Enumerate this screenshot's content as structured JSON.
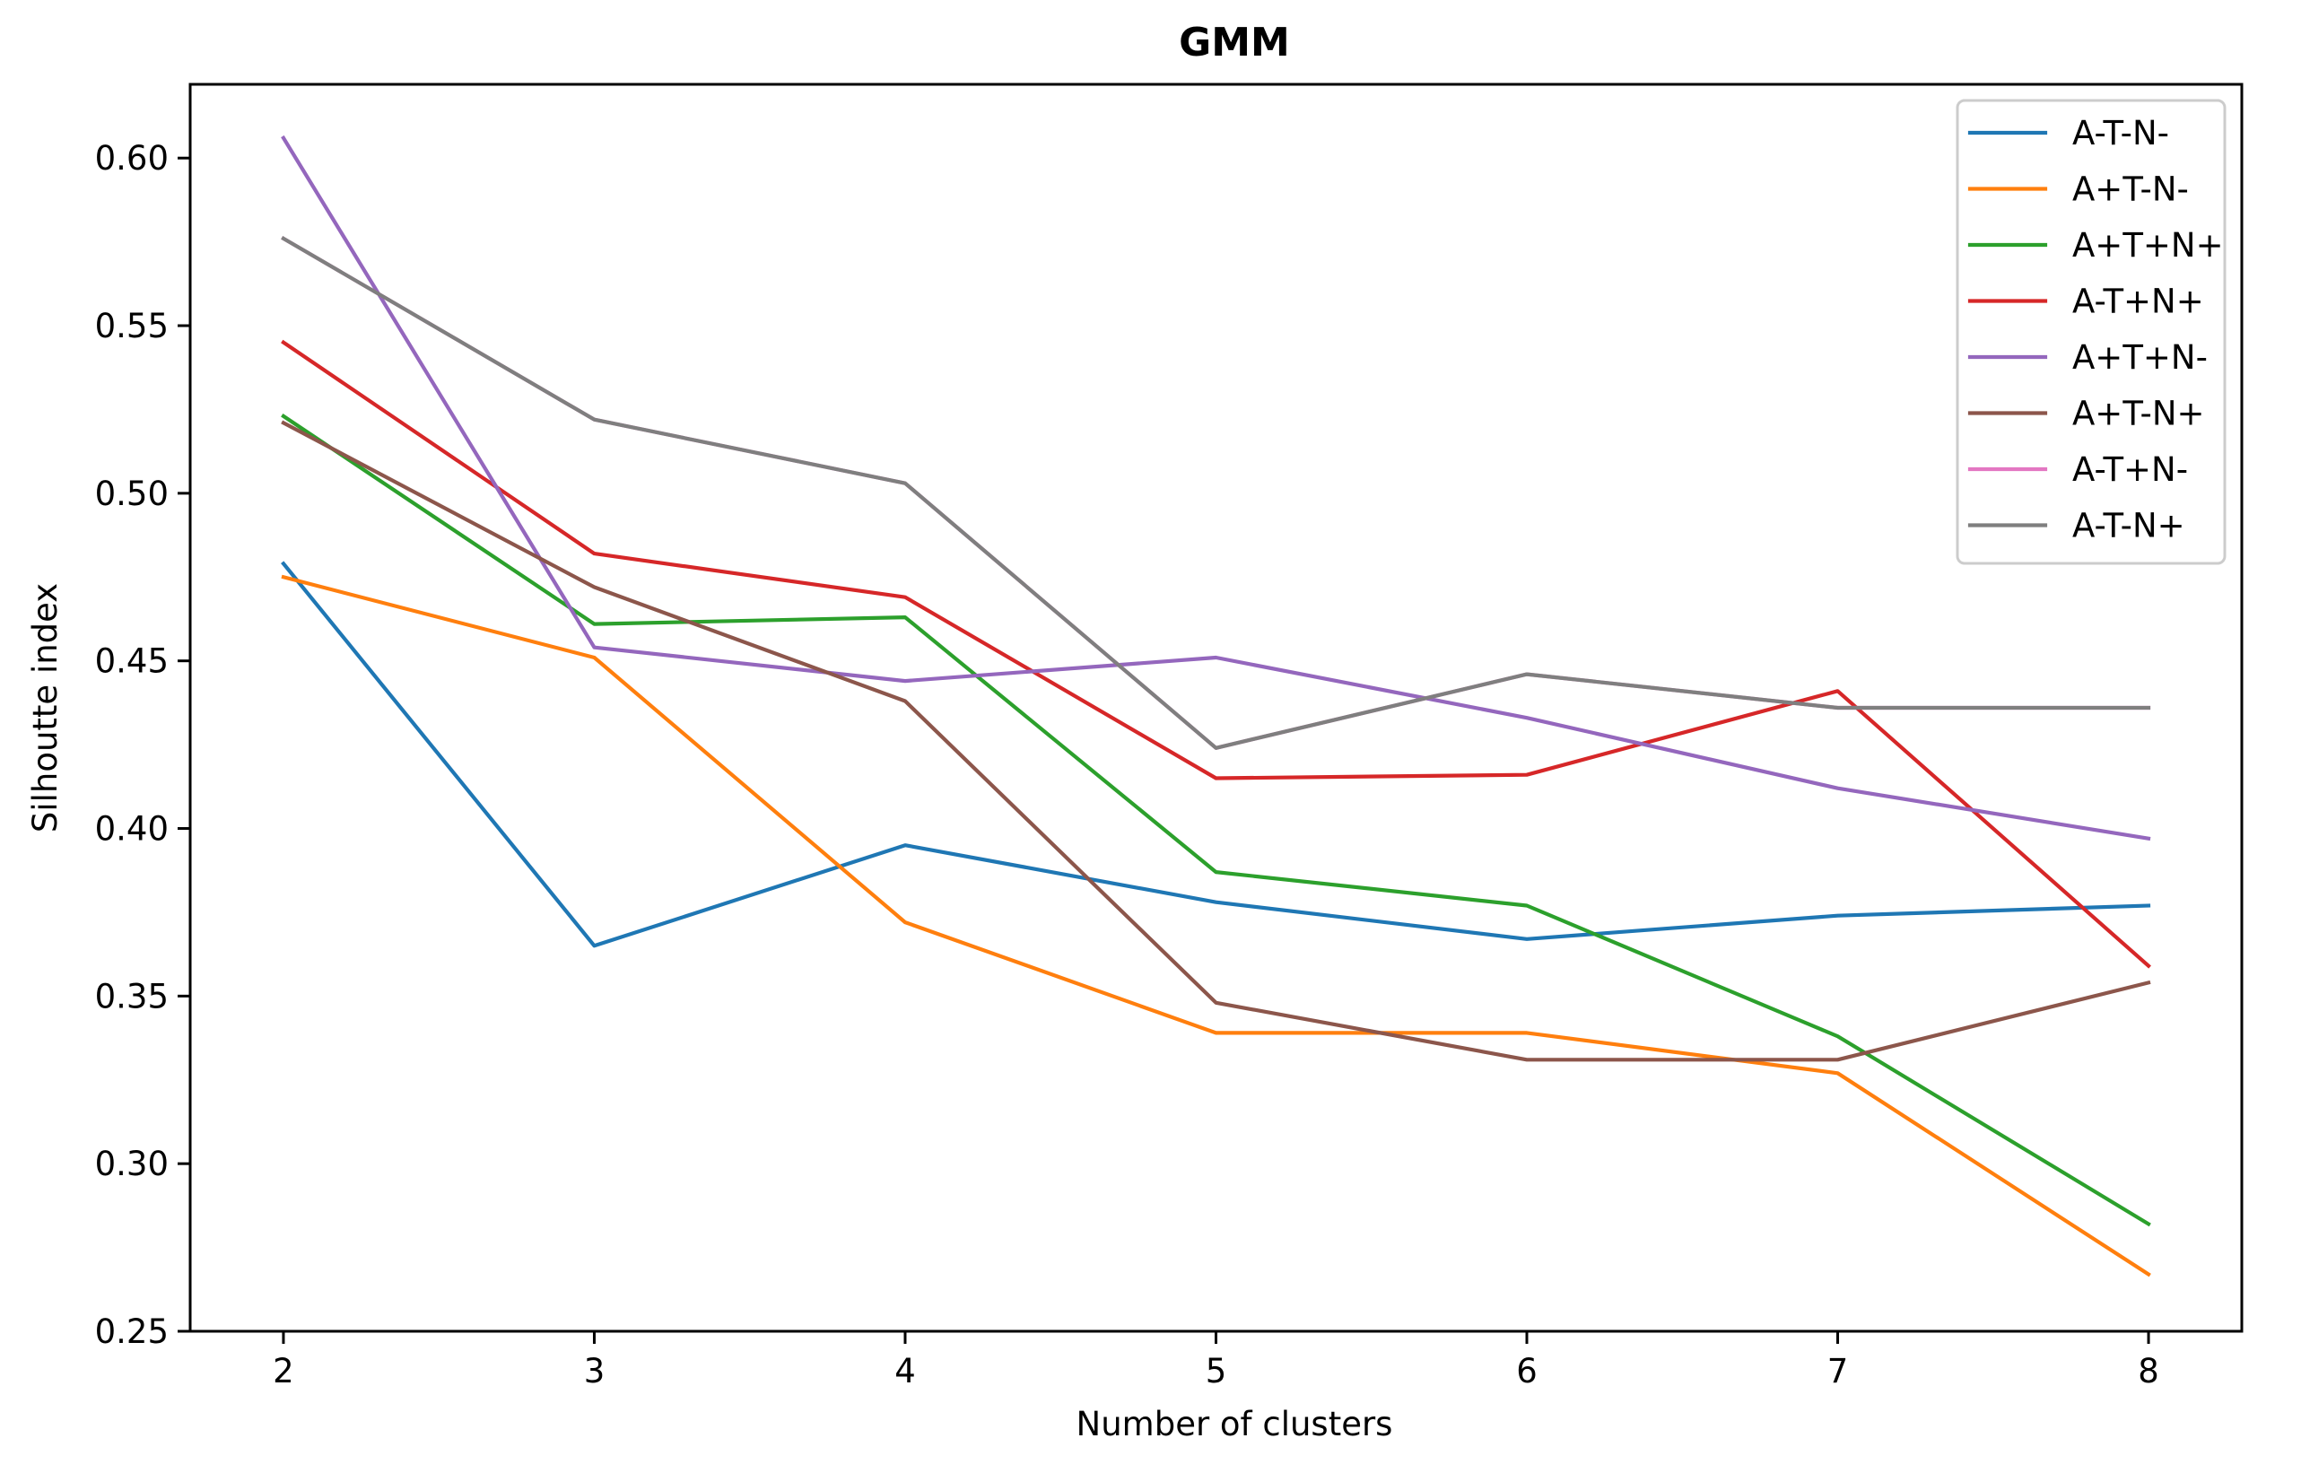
{
  "chart_data": {
    "type": "line",
    "title": "GMM",
    "xlabel": "Number of clusters",
    "ylabel": "Silhoutte index",
    "x": [
      2,
      3,
      4,
      5,
      6,
      7,
      8
    ],
    "xlim": [
      1.7,
      8.3
    ],
    "ylim": [
      0.25,
      0.622
    ],
    "xticks": [
      2,
      3,
      4,
      5,
      6,
      7,
      8
    ],
    "yticks": [
      0.25,
      0.3,
      0.35,
      0.4,
      0.45,
      0.5,
      0.55,
      0.6
    ],
    "ytick_labels": [
      "0.25",
      "0.30",
      "0.35",
      "0.40",
      "0.45",
      "0.50",
      "0.55",
      "0.60"
    ],
    "grid": false,
    "legend_position": "top-right",
    "series": [
      {
        "name": "A-T-N-",
        "color": "#1f77b4",
        "values": [
          0.479,
          0.365,
          0.395,
          0.378,
          0.367,
          0.374,
          0.377
        ]
      },
      {
        "name": "A+T-N-",
        "color": "#ff7f0e",
        "values": [
          0.475,
          0.451,
          0.372,
          0.339,
          0.339,
          0.327,
          0.267
        ]
      },
      {
        "name": "A+T+N+",
        "color": "#2ca02c",
        "values": [
          0.523,
          0.461,
          0.463,
          0.387,
          0.377,
          0.338,
          0.282
        ]
      },
      {
        "name": "A-T+N+",
        "color": "#d62728",
        "values": [
          0.545,
          0.482,
          0.469,
          0.415,
          0.416,
          0.441,
          0.359
        ]
      },
      {
        "name": "A+T+N-",
        "color": "#9467bd",
        "values": [
          0.606,
          0.454,
          0.444,
          0.451,
          0.433,
          0.412,
          0.397
        ]
      },
      {
        "name": "A+T-N+",
        "color": "#8c564b",
        "values": [
          0.521,
          0.472,
          0.438,
          0.348,
          0.331,
          0.331,
          0.354
        ]
      },
      {
        "name": "A-T+N-",
        "color": "#e377c2",
        "values": [
          0.576,
          0.522,
          0.503,
          0.424,
          0.446,
          0.436,
          0.436
        ]
      },
      {
        "name": "A-T-N+",
        "color": "#7f7f7f",
        "values": [
          0.576,
          0.522,
          0.503,
          0.424,
          0.446,
          0.436,
          0.436
        ]
      }
    ]
  }
}
